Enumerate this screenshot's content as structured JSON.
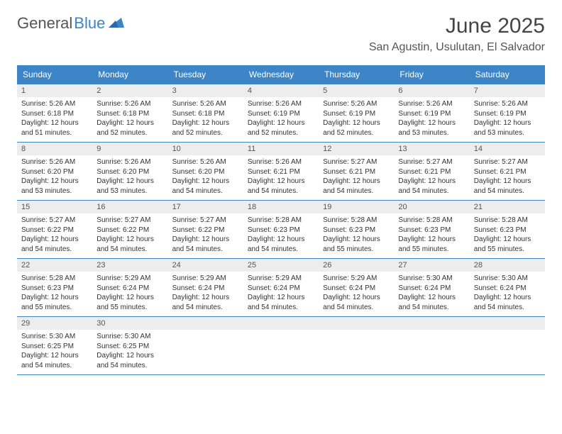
{
  "logo": {
    "part1": "General",
    "part2": "Blue"
  },
  "title": "June 2025",
  "location": "San Agustin, Usulutan, El Salvador",
  "colors": {
    "header_bg": "#3d85c6",
    "header_text": "#ffffff",
    "daynum_bg": "#ededed",
    "border": "#3d85c6",
    "logo_blue": "#3d85c6"
  },
  "typography": {
    "title_fontsize": 30,
    "location_fontsize": 16,
    "dayheader_fontsize": 12,
    "daynum_fontsize": 11,
    "body_fontsize": 10
  },
  "day_headers": [
    "Sunday",
    "Monday",
    "Tuesday",
    "Wednesday",
    "Thursday",
    "Friday",
    "Saturday"
  ],
  "weeks": [
    [
      {
        "n": "1",
        "sr": "Sunrise: 5:26 AM",
        "ss": "Sunset: 6:18 PM",
        "dl": "Daylight: 12 hours and 51 minutes."
      },
      {
        "n": "2",
        "sr": "Sunrise: 5:26 AM",
        "ss": "Sunset: 6:18 PM",
        "dl": "Daylight: 12 hours and 52 minutes."
      },
      {
        "n": "3",
        "sr": "Sunrise: 5:26 AM",
        "ss": "Sunset: 6:18 PM",
        "dl": "Daylight: 12 hours and 52 minutes."
      },
      {
        "n": "4",
        "sr": "Sunrise: 5:26 AM",
        "ss": "Sunset: 6:19 PM",
        "dl": "Daylight: 12 hours and 52 minutes."
      },
      {
        "n": "5",
        "sr": "Sunrise: 5:26 AM",
        "ss": "Sunset: 6:19 PM",
        "dl": "Daylight: 12 hours and 52 minutes."
      },
      {
        "n": "6",
        "sr": "Sunrise: 5:26 AM",
        "ss": "Sunset: 6:19 PM",
        "dl": "Daylight: 12 hours and 53 minutes."
      },
      {
        "n": "7",
        "sr": "Sunrise: 5:26 AM",
        "ss": "Sunset: 6:19 PM",
        "dl": "Daylight: 12 hours and 53 minutes."
      }
    ],
    [
      {
        "n": "8",
        "sr": "Sunrise: 5:26 AM",
        "ss": "Sunset: 6:20 PM",
        "dl": "Daylight: 12 hours and 53 minutes."
      },
      {
        "n": "9",
        "sr": "Sunrise: 5:26 AM",
        "ss": "Sunset: 6:20 PM",
        "dl": "Daylight: 12 hours and 53 minutes."
      },
      {
        "n": "10",
        "sr": "Sunrise: 5:26 AM",
        "ss": "Sunset: 6:20 PM",
        "dl": "Daylight: 12 hours and 54 minutes."
      },
      {
        "n": "11",
        "sr": "Sunrise: 5:26 AM",
        "ss": "Sunset: 6:21 PM",
        "dl": "Daylight: 12 hours and 54 minutes."
      },
      {
        "n": "12",
        "sr": "Sunrise: 5:27 AM",
        "ss": "Sunset: 6:21 PM",
        "dl": "Daylight: 12 hours and 54 minutes."
      },
      {
        "n": "13",
        "sr": "Sunrise: 5:27 AM",
        "ss": "Sunset: 6:21 PM",
        "dl": "Daylight: 12 hours and 54 minutes."
      },
      {
        "n": "14",
        "sr": "Sunrise: 5:27 AM",
        "ss": "Sunset: 6:21 PM",
        "dl": "Daylight: 12 hours and 54 minutes."
      }
    ],
    [
      {
        "n": "15",
        "sr": "Sunrise: 5:27 AM",
        "ss": "Sunset: 6:22 PM",
        "dl": "Daylight: 12 hours and 54 minutes."
      },
      {
        "n": "16",
        "sr": "Sunrise: 5:27 AM",
        "ss": "Sunset: 6:22 PM",
        "dl": "Daylight: 12 hours and 54 minutes."
      },
      {
        "n": "17",
        "sr": "Sunrise: 5:27 AM",
        "ss": "Sunset: 6:22 PM",
        "dl": "Daylight: 12 hours and 54 minutes."
      },
      {
        "n": "18",
        "sr": "Sunrise: 5:28 AM",
        "ss": "Sunset: 6:23 PM",
        "dl": "Daylight: 12 hours and 54 minutes."
      },
      {
        "n": "19",
        "sr": "Sunrise: 5:28 AM",
        "ss": "Sunset: 6:23 PM",
        "dl": "Daylight: 12 hours and 55 minutes."
      },
      {
        "n": "20",
        "sr": "Sunrise: 5:28 AM",
        "ss": "Sunset: 6:23 PM",
        "dl": "Daylight: 12 hours and 55 minutes."
      },
      {
        "n": "21",
        "sr": "Sunrise: 5:28 AM",
        "ss": "Sunset: 6:23 PM",
        "dl": "Daylight: 12 hours and 55 minutes."
      }
    ],
    [
      {
        "n": "22",
        "sr": "Sunrise: 5:28 AM",
        "ss": "Sunset: 6:23 PM",
        "dl": "Daylight: 12 hours and 55 minutes."
      },
      {
        "n": "23",
        "sr": "Sunrise: 5:29 AM",
        "ss": "Sunset: 6:24 PM",
        "dl": "Daylight: 12 hours and 55 minutes."
      },
      {
        "n": "24",
        "sr": "Sunrise: 5:29 AM",
        "ss": "Sunset: 6:24 PM",
        "dl": "Daylight: 12 hours and 54 minutes."
      },
      {
        "n": "25",
        "sr": "Sunrise: 5:29 AM",
        "ss": "Sunset: 6:24 PM",
        "dl": "Daylight: 12 hours and 54 minutes."
      },
      {
        "n": "26",
        "sr": "Sunrise: 5:29 AM",
        "ss": "Sunset: 6:24 PM",
        "dl": "Daylight: 12 hours and 54 minutes."
      },
      {
        "n": "27",
        "sr": "Sunrise: 5:30 AM",
        "ss": "Sunset: 6:24 PM",
        "dl": "Daylight: 12 hours and 54 minutes."
      },
      {
        "n": "28",
        "sr": "Sunrise: 5:30 AM",
        "ss": "Sunset: 6:24 PM",
        "dl": "Daylight: 12 hours and 54 minutes."
      }
    ],
    [
      {
        "n": "29",
        "sr": "Sunrise: 5:30 AM",
        "ss": "Sunset: 6:25 PM",
        "dl": "Daylight: 12 hours and 54 minutes."
      },
      {
        "n": "30",
        "sr": "Sunrise: 5:30 AM",
        "ss": "Sunset: 6:25 PM",
        "dl": "Daylight: 12 hours and 54 minutes."
      },
      {
        "n": "",
        "sr": "",
        "ss": "",
        "dl": "",
        "empty": true
      },
      {
        "n": "",
        "sr": "",
        "ss": "",
        "dl": "",
        "empty": true
      },
      {
        "n": "",
        "sr": "",
        "ss": "",
        "dl": "",
        "empty": true
      },
      {
        "n": "",
        "sr": "",
        "ss": "",
        "dl": "",
        "empty": true
      },
      {
        "n": "",
        "sr": "",
        "ss": "",
        "dl": "",
        "empty": true
      }
    ]
  ]
}
